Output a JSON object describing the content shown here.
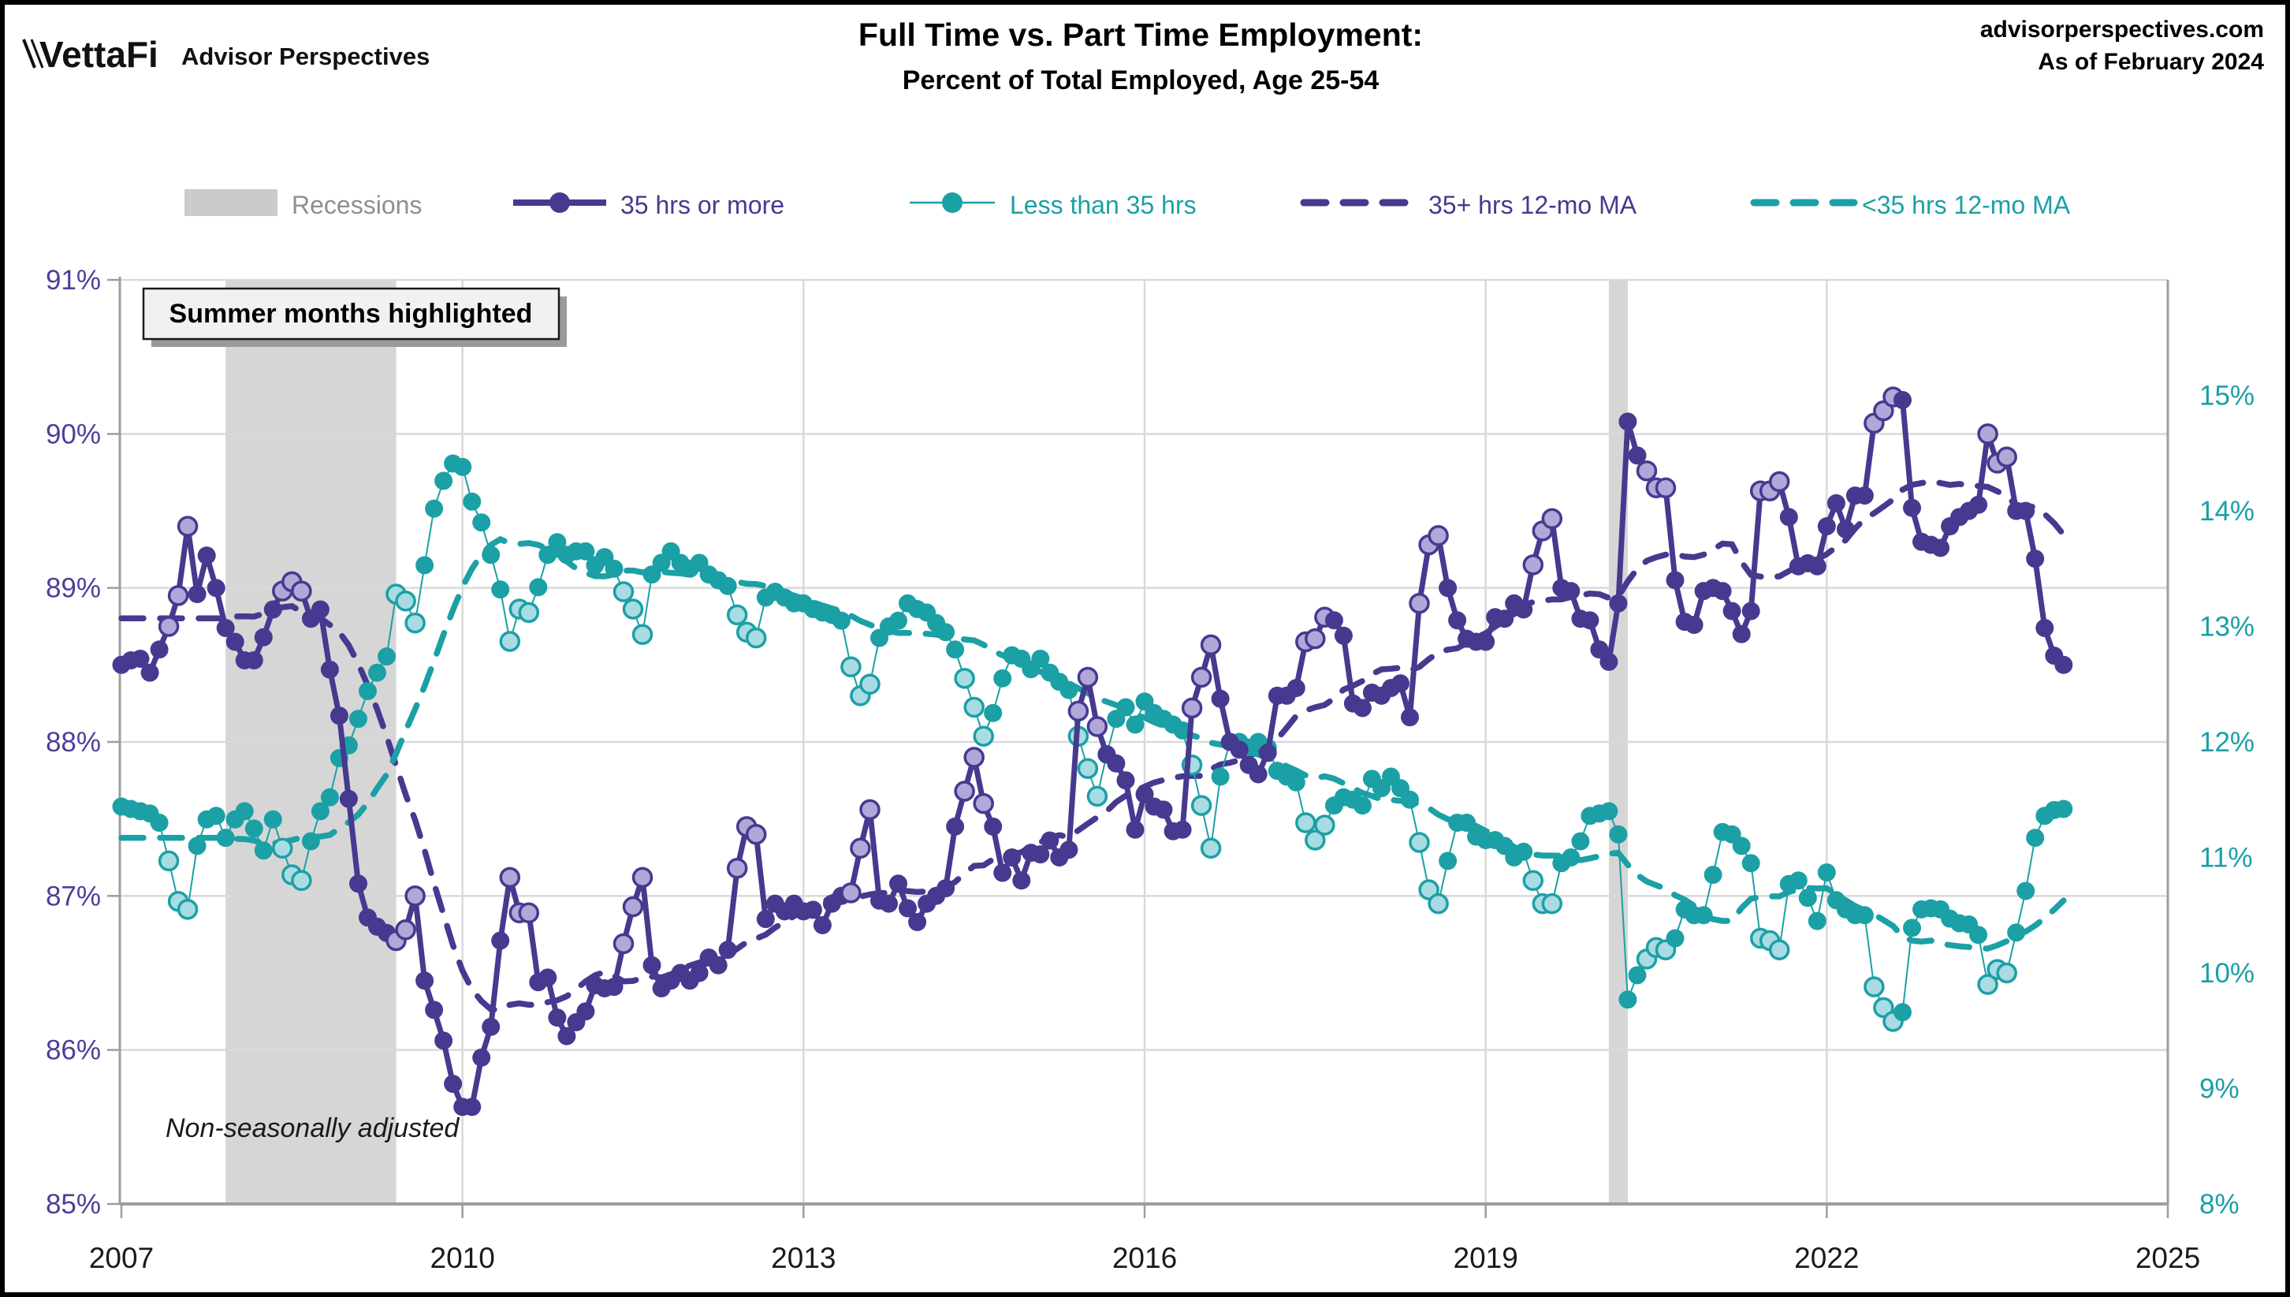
{
  "header": {
    "logo": "VettaFi",
    "brand": "Advisor Perspectives",
    "title": "Full Time vs. Part Time Employment:",
    "subtitle": "Percent of Total Employed, Age 25-54",
    "site": "advisorperspectives.com",
    "as_of": "As of February 2024"
  },
  "legend": {
    "items": [
      {
        "label": "Recessions",
        "type": "band",
        "color": "#cbcbcb"
      },
      {
        "label": "35 hrs or more",
        "type": "line-marker",
        "color": "#453a8f"
      },
      {
        "label": "Less than 35 hrs",
        "type": "thinline-marker",
        "color": "#1ba0a6"
      },
      {
        "label": "35+ hrs 12-mo MA",
        "type": "dashed",
        "color": "#453a8f"
      },
      {
        "label": "<35 hrs 12-mo MA",
        "type": "dashed",
        "color": "#1ba0a6"
      }
    ]
  },
  "annotations": {
    "summer_note": "Summer months highlighted",
    "nsa_note": "Non-seasonally adjusted"
  },
  "colors": {
    "purple": "#453a8f",
    "purple_light": "#b3a6d9",
    "teal": "#1ba0a6",
    "teal_light": "#a9dbe3",
    "recession_band": "#d6d6d6",
    "grid": "#d9d9d9",
    "axis": "#9e9e9e",
    "left_axis_text": "#4c3f99",
    "right_axis_text": "#1b9fa6",
    "x_axis_text": "#1a1a1a",
    "recessions_legend_text": "#8f8f8f"
  },
  "chart_data": {
    "type": "line",
    "title": "Full Time vs. Part Time Employment: Percent of Total Employed, Age 25-54",
    "frequency": "monthly",
    "x_axis": {
      "start_year": 2007,
      "start_month": 1,
      "end_year": 2025,
      "tick_years": [
        "2007",
        "2010",
        "2013",
        "2016",
        "2019",
        "2022",
        "2025"
      ]
    },
    "left_axis": {
      "min": 85,
      "max": 91,
      "labels": [
        "91%",
        "90%",
        "89%",
        "88%",
        "87%",
        "86%",
        "85%"
      ],
      "values": [
        91,
        90,
        89,
        88,
        87,
        86,
        85
      ]
    },
    "right_axis": {
      "min": 8,
      "max": 16,
      "labels": [
        "15%",
        "14%",
        "13%",
        "12%",
        "11%",
        "10%",
        "9%",
        "8%"
      ],
      "values": [
        15,
        14,
        13,
        12,
        11,
        10,
        9,
        8
      ]
    },
    "grid": true,
    "legend_position": "top",
    "summer_months_highlighted": [
      6,
      7,
      8
    ],
    "recessions": [
      {
        "start_year": 2007,
        "start_month": 12,
        "end_year": 2009,
        "end_month": 6
      },
      {
        "start_year": 2020,
        "start_month": 2,
        "end_year": 2020,
        "end_month": 4
      }
    ],
    "series": [
      {
        "name": "35 hrs or more",
        "axis": "left",
        "color": "#453a8f",
        "highlight_fill": "#b3a6d9",
        "values": [
          88.5,
          88.53,
          88.54,
          88.45,
          88.6,
          88.75,
          88.95,
          89.4,
          88.96,
          89.21,
          89.0,
          88.74,
          88.65,
          88.53,
          88.53,
          88.68,
          88.86,
          88.98,
          89.04,
          88.98,
          88.8,
          88.86,
          88.47,
          88.17,
          87.63,
          87.08,
          86.86,
          86.8,
          86.76,
          86.71,
          86.78,
          87.0,
          86.45,
          86.26,
          86.06,
          85.78,
          85.63,
          85.63,
          85.95,
          86.15,
          86.71,
          87.12,
          86.89,
          86.89,
          86.44,
          86.47,
          86.21,
          86.09,
          86.18,
          86.25,
          86.42,
          86.4,
          86.41,
          86.69,
          86.93,
          87.12,
          86.55,
          86.4,
          86.45,
          86.5,
          86.45,
          86.5,
          86.6,
          86.55,
          86.65,
          87.18,
          87.45,
          87.4,
          86.85,
          86.95,
          86.9,
          86.95,
          86.9,
          86.91,
          86.81,
          86.95,
          87.0,
          87.02,
          87.31,
          87.56,
          86.97,
          86.95,
          87.08,
          86.92,
          86.83,
          86.95,
          87.0,
          87.05,
          87.45,
          87.68,
          87.9,
          87.6,
          87.45,
          87.15,
          87.25,
          87.1,
          87.28,
          87.27,
          87.36,
          87.25,
          87.3,
          88.2,
          88.42,
          88.1,
          87.92,
          87.86,
          87.75,
          87.43,
          87.66,
          87.58,
          87.56,
          87.42,
          87.43,
          88.22,
          88.42,
          88.63,
          88.28,
          88.0,
          87.95,
          87.85,
          87.79,
          87.93,
          88.3,
          88.3,
          88.35,
          88.65,
          88.67,
          88.81,
          88.79,
          88.69,
          88.25,
          88.22,
          88.32,
          88.3,
          88.35,
          88.38,
          88.16,
          88.9,
          89.28,
          89.34,
          89.0,
          88.79,
          88.67,
          88.65,
          88.65,
          88.81,
          88.8,
          88.9,
          88.86,
          89.15,
          89.37,
          89.45,
          89.0,
          88.98,
          88.8,
          88.79,
          88.6,
          88.52,
          88.9,
          90.08,
          89.86,
          89.76,
          89.65,
          89.65,
          89.05,
          88.78,
          88.76,
          88.98,
          89.0,
          88.98,
          88.85,
          88.7,
          88.85,
          89.63,
          89.63,
          89.69,
          89.46,
          89.14,
          89.16,
          89.14,
          89.4,
          89.55,
          89.38,
          89.6,
          89.6,
          90.07,
          90.15,
          90.24,
          90.22,
          89.52,
          89.3,
          89.28,
          89.26,
          89.4,
          89.46,
          89.5,
          89.54,
          90.0,
          89.81,
          89.85,
          89.5,
          89.5,
          89.19,
          88.74,
          88.56,
          88.5
        ]
      },
      {
        "name": "Less than 35 hrs",
        "axis": "right",
        "color": "#1ba0a6",
        "highlight_fill": "#a9dbe3",
        "values": [
          11.44,
          11.42,
          11.4,
          11.38,
          11.3,
          10.97,
          10.62,
          10.55,
          11.1,
          11.33,
          11.36,
          11.17,
          11.33,
          11.4,
          11.25,
          11.06,
          11.33,
          11.08,
          10.85,
          10.8,
          11.14,
          11.4,
          11.52,
          11.86,
          11.97,
          12.2,
          12.44,
          12.6,
          12.74,
          13.28,
          13.22,
          13.03,
          13.53,
          14.02,
          14.26,
          14.41,
          14.38,
          14.08,
          13.9,
          13.62,
          13.32,
          12.87,
          13.15,
          13.12,
          13.34,
          13.62,
          13.73,
          13.62,
          13.65,
          13.65,
          13.53,
          13.6,
          13.5,
          13.3,
          13.15,
          12.93,
          13.45,
          13.55,
          13.65,
          13.55,
          13.5,
          13.55,
          13.45,
          13.4,
          13.35,
          13.1,
          12.95,
          12.9,
          13.25,
          13.3,
          13.25,
          13.2,
          13.2,
          13.15,
          13.12,
          13.1,
          13.05,
          12.65,
          12.4,
          12.5,
          12.9,
          13.0,
          13.05,
          13.2,
          13.15,
          13.12,
          13.03,
          12.95,
          12.8,
          12.55,
          12.3,
          12.05,
          12.25,
          12.55,
          12.75,
          12.72,
          12.63,
          12.72,
          12.6,
          12.52,
          12.45,
          12.05,
          11.77,
          11.53,
          11.89,
          12.2,
          12.3,
          12.15,
          12.35,
          12.25,
          12.2,
          12.15,
          12.1,
          11.8,
          11.45,
          11.08,
          11.7,
          12.0,
          12.0,
          11.95,
          12.0,
          11.95,
          11.75,
          11.7,
          11.65,
          11.3,
          11.15,
          11.28,
          11.45,
          11.52,
          11.5,
          11.45,
          11.68,
          11.6,
          11.7,
          11.6,
          11.5,
          11.13,
          10.72,
          10.6,
          10.97,
          11.3,
          11.3,
          11.18,
          11.15,
          11.15,
          11.1,
          11.0,
          11.05,
          10.8,
          10.6,
          10.6,
          10.95,
          11.0,
          11.14,
          11.36,
          11.38,
          11.4,
          11.2,
          9.77,
          9.98,
          10.12,
          10.22,
          10.2,
          10.3,
          10.55,
          10.5,
          10.5,
          10.85,
          11.22,
          11.2,
          11.1,
          10.95,
          10.3,
          10.28,
          10.2,
          10.77,
          10.8,
          10.65,
          10.45,
          10.87,
          10.63,
          10.55,
          10.5,
          10.5,
          9.88,
          9.7,
          9.58,
          9.66,
          10.39,
          10.55,
          10.56,
          10.55,
          10.47,
          10.43,
          10.42,
          10.33,
          9.9,
          10.03,
          10.0,
          10.35,
          10.71,
          11.17,
          11.36,
          11.41,
          11.42
        ]
      }
    ],
    "ma_series": [
      {
        "name": "35+ hrs 12-mo MA",
        "source_index": 0,
        "window": 12,
        "style": "dashed"
      },
      {
        "name": "<35 hrs 12-mo MA",
        "source_index": 1,
        "window": 12,
        "style": "dashed"
      }
    ]
  }
}
